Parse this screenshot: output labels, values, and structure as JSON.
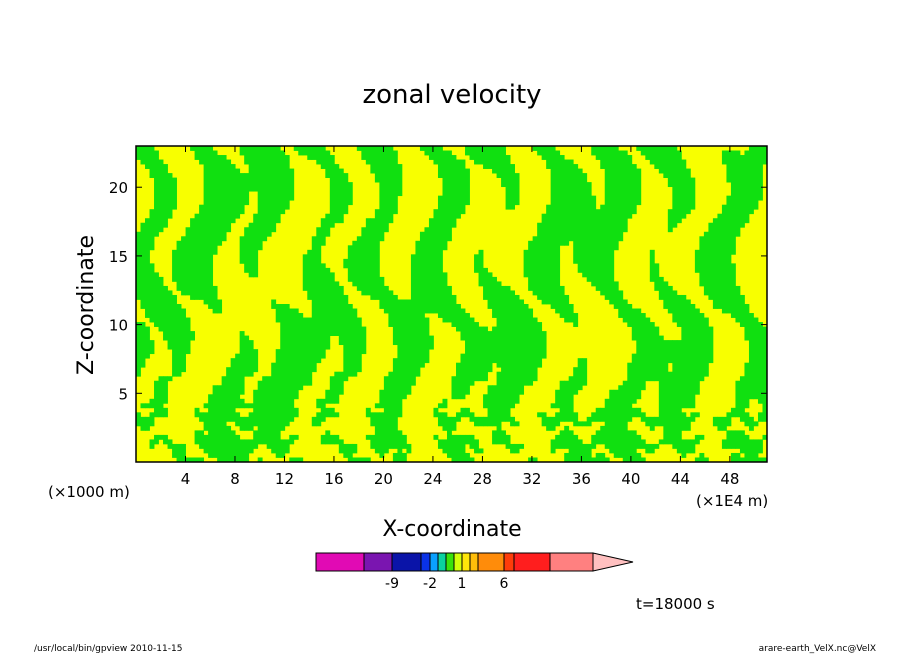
{
  "chart_data": {
    "type": "contour",
    "title": "zonal velocity",
    "xlabel": "X-coordinate",
    "ylabel": "Z-coordinate",
    "x_unit_left": "(×1000 m)",
    "x_unit_right": "(×1E4 m)",
    "xlim": [
      0,
      51
    ],
    "ylim": [
      0,
      23
    ],
    "x_ticks": [
      4,
      8,
      12,
      16,
      20,
      24,
      28,
      32,
      36,
      40,
      44,
      48
    ],
    "y_ticks": [
      5,
      10,
      15,
      20
    ],
    "time_label": "t=18000 s",
    "colorbar": {
      "colors": [
        "#e10ab4",
        "#7a15b0",
        "#0a14a8",
        "#0a32e6",
        "#0aa0ff",
        "#0ad2a0",
        "#39e20a",
        "#d2ff0a",
        "#ffe60a",
        "#ffbe0a",
        "#ff8c0a",
        "#ff3c0a",
        "#ff1e1e",
        "#ff8080"
      ],
      "extend_color": "#ffc0c0",
      "labels": [
        "-9",
        "-2",
        "1",
        "6"
      ]
    },
    "fill_colors": {
      "positive": "#f8ff00",
      "negative": "#10e010"
    }
  },
  "footer": {
    "left": "/usr/local/bin/gpview  2010-11-15",
    "right": "arare-earth_VelX.nc@VelX"
  }
}
